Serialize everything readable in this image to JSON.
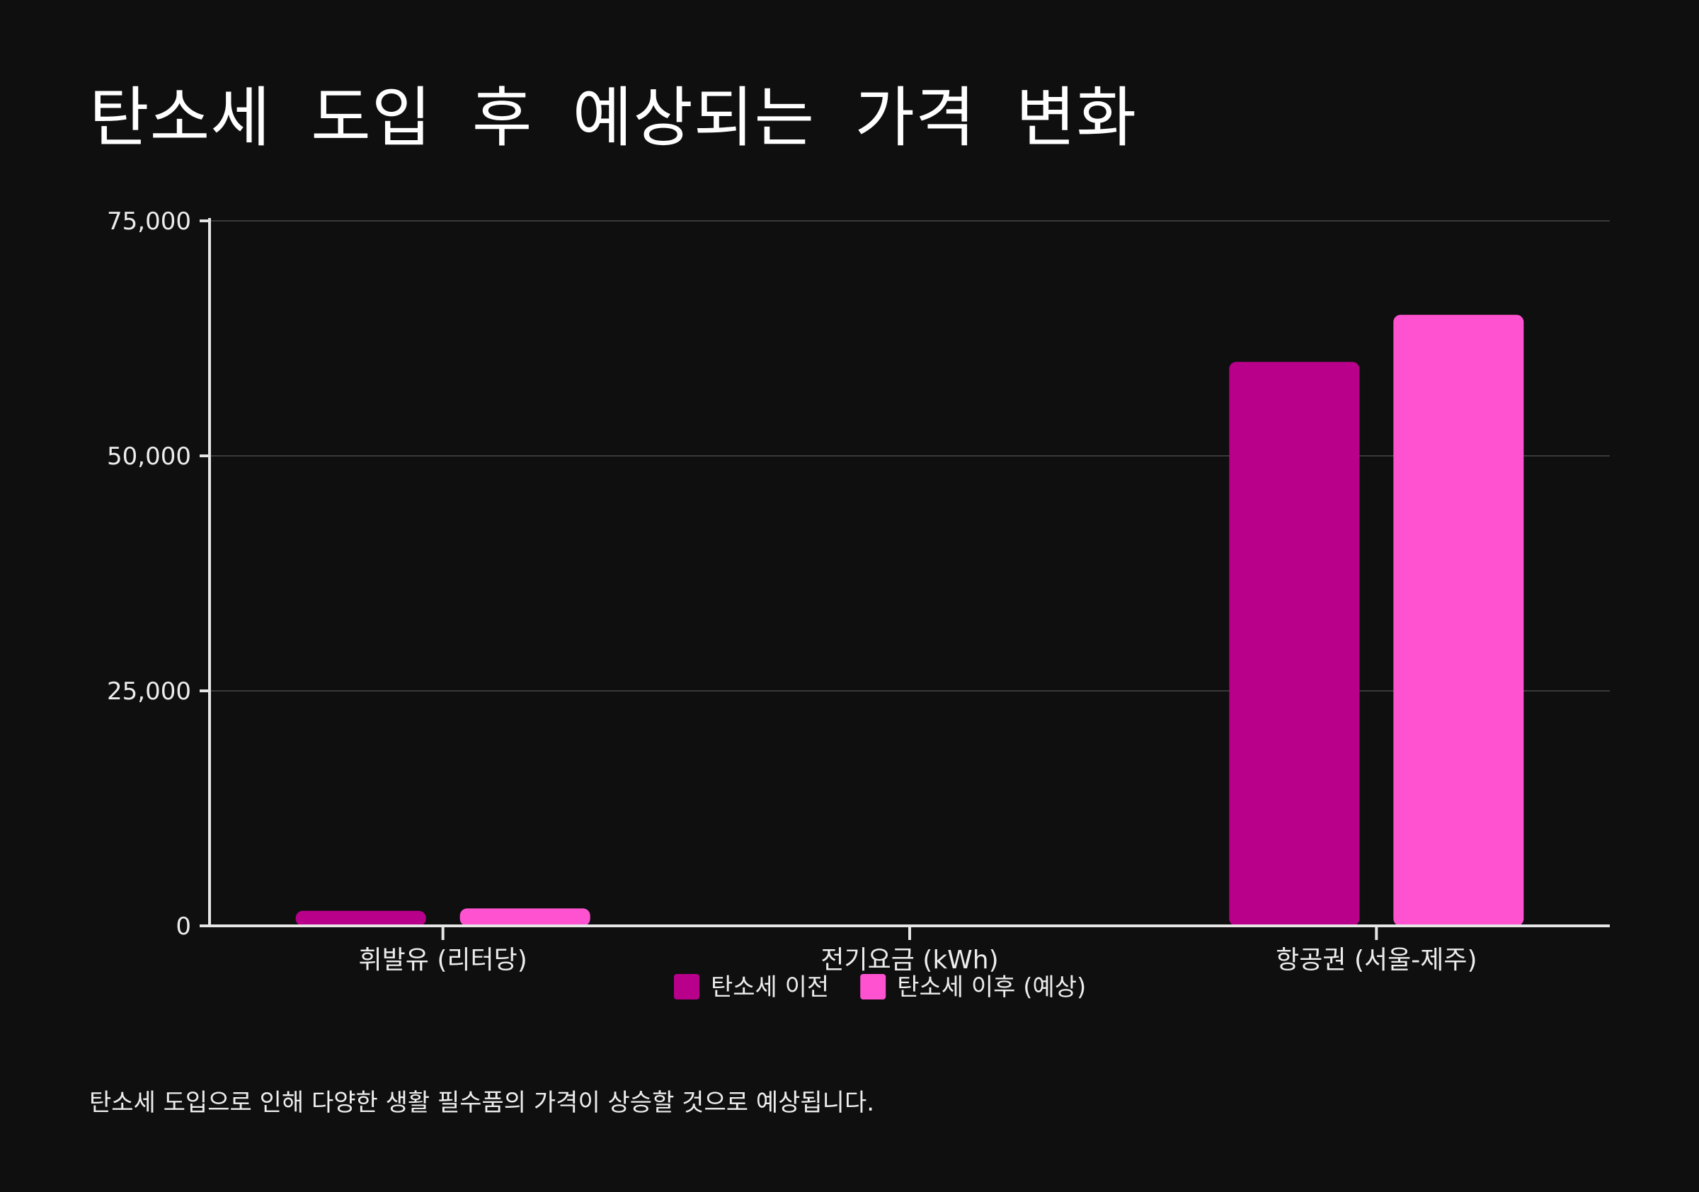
{
  "title": "탄소세 도입 후 예상되는 가격 변화",
  "footnote": "탄소세 도입으로 인해 다양한 생활 필수품의 가격이 상승할 것으로 예상됩니다.",
  "colors": {
    "background": "#0f0f0f",
    "series_before": "#b8008a",
    "series_after": "#ff52d0",
    "grid": "#3a3a3a",
    "axis": "#e6e6e6"
  },
  "chart_data": {
    "type": "bar",
    "categories": [
      "휘발유 (리터당)",
      "전기요금 (kWh)",
      "항공권 (서울-제주)"
    ],
    "series": [
      {
        "name": "탄소세 이전",
        "values": [
          1600,
          120,
          60000
        ]
      },
      {
        "name": "탄소세 이후 (예상)",
        "values": [
          1850,
          140,
          65000
        ]
      }
    ],
    "yticks": [
      0,
      25000,
      50000,
      75000
    ],
    "ytick_labels": [
      "0",
      "25,000",
      "50,000",
      "75,000"
    ],
    "ylim": [
      0,
      75000
    ],
    "grid": true,
    "legend_position": "bottom-center"
  }
}
